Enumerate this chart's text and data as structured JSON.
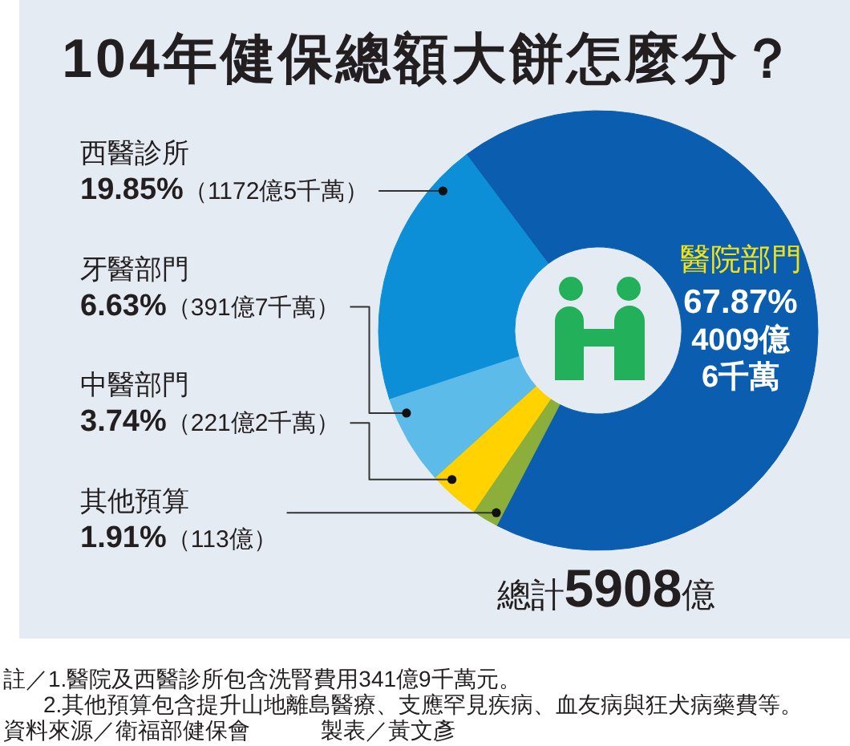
{
  "chart_data": {
    "type": "donut",
    "title": "104年健保總額大餅怎麼分？",
    "categories": [
      "醫院部門",
      "西醫診所",
      "牙醫部門",
      "中醫部門",
      "其他預算"
    ],
    "values": [
      67.87,
      19.85,
      6.63,
      3.74,
      1.91
    ],
    "colors": [
      "#0b5eaf",
      "#0d8fd7",
      "#5cbbe9",
      "#ffd200",
      "#8cae3a"
    ],
    "value_labels": [
      "67.87%\n4009億\n6千萬",
      "19.85%（1172億5千萬）",
      "6.63%（391億7千萬）",
      "3.74%（221億2千萬）",
      "1.91%（113億）"
    ],
    "annotations": [
      "總計5908億",
      "註／1.醫院及西醫診所包含洗腎費用341億9千萬元。",
      "2.其他預算包含提升山地離島醫療、支應罕見疾病、血友病與狂犬病藥費等。",
      "資料來源／衛福部健保會",
      "製表／黃文彥"
    ]
  }
}
